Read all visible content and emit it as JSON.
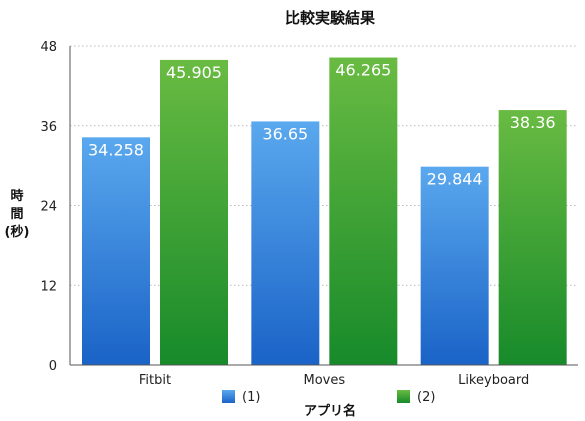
{
  "chart_data": {
    "type": "bar",
    "title": "比較実験結果",
    "xlabel": "アプリ名",
    "ylabel": "時間(秒)",
    "ylabel_lines": [
      "時",
      "間",
      "(秒)"
    ],
    "categories": [
      "Fitbit",
      "Moves",
      "Likeyboard"
    ],
    "series": [
      {
        "name": "(1)",
        "values": [
          34.258,
          36.65,
          29.844
        ],
        "color_top": "#5aa8ee",
        "color_bottom": "#1a63c7"
      },
      {
        "name": "(2)",
        "values": [
          45.905,
          46.265,
          38.36
        ],
        "color_top": "#69bb42",
        "color_bottom": "#178a2a"
      }
    ],
    "ylim": [
      0,
      48
    ],
    "yticks": [
      0,
      12,
      24,
      36,
      48
    ],
    "grid": true,
    "legend_position": "bottom-center",
    "data_labels": true
  }
}
